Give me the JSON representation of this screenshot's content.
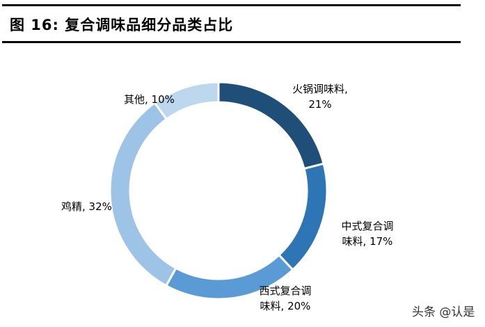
{
  "title": "图 16:  复合调味品细分品类占比",
  "watermark": "头条 @认是",
  "chart_data": {
    "type": "pie",
    "donut": true,
    "title": "复合调味品细分品类占比",
    "start": "top, clockwise",
    "slices": [
      {
        "label_line1": "火锅调味料,",
        "label_line2": "21%",
        "name": "火锅调味料",
        "value": 21,
        "color": "#1F4E79"
      },
      {
        "label_line1": "中式复合调",
        "label_line2": "味料, 17%",
        "name": "中式复合调味料",
        "value": 17,
        "color": "#2E75B6"
      },
      {
        "label_line1": "西式复合调",
        "label_line2": "味料, 20%",
        "name": "西式复合调味料",
        "value": 20,
        "color": "#5B9BD5"
      },
      {
        "label_line1": "鸡精, 32%",
        "label_line2": "",
        "name": "鸡精",
        "value": 32,
        "color": "#9DC3E6"
      },
      {
        "label_line1": "其他, 10%",
        "label_line2": "",
        "name": "其他",
        "value": 10,
        "color": "#BDD7EE"
      }
    ]
  }
}
